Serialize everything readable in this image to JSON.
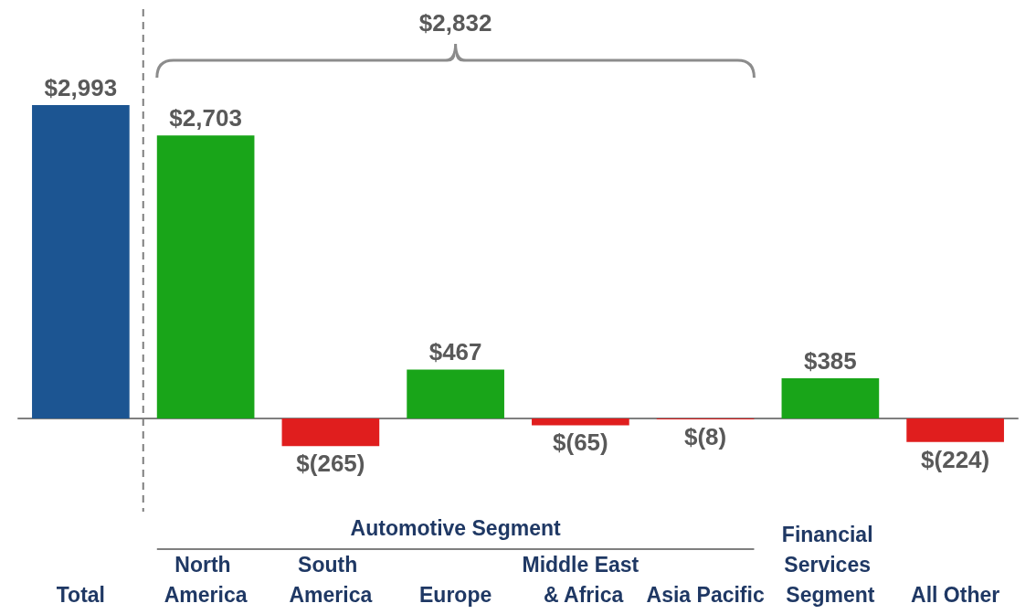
{
  "chart_data": {
    "type": "bar",
    "categories": [
      "Total",
      "North America",
      "South America",
      "Europe",
      "Middle East & Africa",
      "Asia Pacific",
      "Financial Services Segment",
      "All Other"
    ],
    "values": [
      2993,
      2703,
      -265,
      467,
      -65,
      -8,
      385,
      -224
    ],
    "colors": [
      "#1c5592",
      "#19a519",
      "#e01e1e",
      "#19a519",
      "#e01e1e",
      "#e01e1e",
      "#19a519",
      "#e01e1e"
    ],
    "value_labels": [
      "$2,993",
      "$2,703",
      "$(265)",
      "$467",
      "$(65)",
      "$(8)",
      "$385",
      "$(224)"
    ],
    "annotations": [
      "$2,832",
      "Automotive Segment"
    ],
    "grid": false
  }
}
